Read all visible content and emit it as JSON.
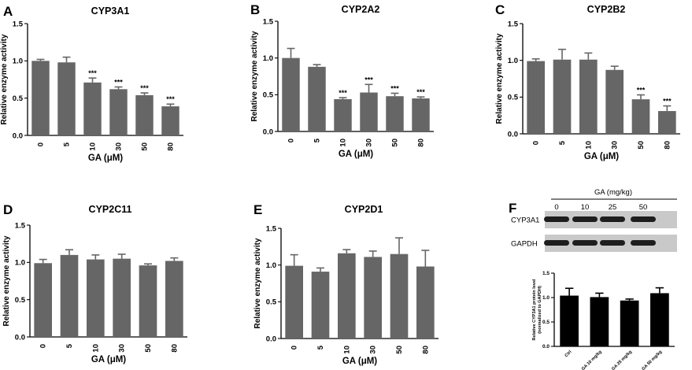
{
  "chart_data": [
    {
      "id": "A",
      "panel_label": "A",
      "type": "bar",
      "title": "CYP3A1",
      "categories": [
        "0",
        "5",
        "10",
        "30",
        "50",
        "80"
      ],
      "values": [
        1.0,
        0.98,
        0.71,
        0.62,
        0.54,
        0.39
      ],
      "errors": [
        0.02,
        0.07,
        0.06,
        0.03,
        0.03,
        0.03
      ],
      "significance": [
        "",
        "",
        "***",
        "***",
        "***",
        "***"
      ],
      "ylabel": "Relative enzyme activity",
      "xlabel": "GA (μM)",
      "ylim": [
        0,
        1.5
      ],
      "yticks": [
        "0.0",
        "0.5",
        "1.0",
        "1.5"
      ],
      "bar_color": "#666666"
    },
    {
      "id": "B",
      "panel_label": "B",
      "type": "bar",
      "title": "CYP2A2",
      "categories": [
        "0",
        "5",
        "10",
        "30",
        "50",
        "80"
      ],
      "values": [
        1.0,
        0.88,
        0.44,
        0.53,
        0.48,
        0.45
      ],
      "errors": [
        0.13,
        0.03,
        0.02,
        0.11,
        0.04,
        0.02
      ],
      "significance": [
        "",
        "",
        "***",
        "***",
        "***",
        "***"
      ],
      "ylabel": "Relative enzyme activity",
      "xlabel": "GA (μM)",
      "ylim": [
        0,
        1.5
      ],
      "yticks": [
        "0.0",
        "0.5",
        "1.0",
        "1.5"
      ],
      "bar_color": "#666666"
    },
    {
      "id": "C",
      "panel_label": "C",
      "type": "bar",
      "title": "CYP2B2",
      "categories": [
        "0",
        "5",
        "10",
        "30",
        "50",
        "80"
      ],
      "values": [
        0.99,
        1.01,
        1.01,
        0.87,
        0.47,
        0.31
      ],
      "errors": [
        0.03,
        0.14,
        0.09,
        0.05,
        0.06,
        0.07
      ],
      "significance": [
        "",
        "",
        "",
        "",
        "***",
        "***"
      ],
      "ylabel": "Relative enzyme activity",
      "xlabel": "GA (μM)",
      "ylim": [
        0,
        1.5
      ],
      "yticks": [
        "0.0",
        "0.5",
        "1.0",
        "1.5"
      ],
      "bar_color": "#666666"
    },
    {
      "id": "D",
      "panel_label": "D",
      "type": "bar",
      "title": "CYP2C11",
      "categories": [
        "0",
        "5",
        "10",
        "30",
        "50",
        "80"
      ],
      "values": [
        0.99,
        1.1,
        1.04,
        1.05,
        0.96,
        1.02
      ],
      "errors": [
        0.05,
        0.07,
        0.06,
        0.06,
        0.02,
        0.04
      ],
      "significance": [
        "",
        "",
        "",
        "",
        "",
        ""
      ],
      "ylabel": "Relative enzyme activity",
      "xlabel": "GA (μM)",
      "ylim": [
        0,
        1.5
      ],
      "yticks": [
        "0.0",
        "0.5",
        "1.0",
        "1.5"
      ],
      "bar_color": "#666666"
    },
    {
      "id": "E",
      "panel_label": "E",
      "type": "bar",
      "title": "CYP2D1",
      "categories": [
        "0",
        "5",
        "10",
        "30",
        "50",
        "80"
      ],
      "values": [
        0.99,
        0.91,
        1.16,
        1.11,
        1.15,
        0.98
      ],
      "errors": [
        0.15,
        0.05,
        0.05,
        0.08,
        0.22,
        0.22
      ],
      "significance": [
        "",
        "",
        "",
        "",
        "",
        ""
      ],
      "ylabel": "Relative enzyme activity",
      "xlabel": "GA (μM)",
      "ylim": [
        0,
        1.5
      ],
      "yticks": [
        "0.0",
        "0.5",
        "1.0",
        "1.5"
      ],
      "bar_color": "#666666"
    },
    {
      "id": "F",
      "panel_label": "F",
      "type": "bar",
      "title": "",
      "categories": [
        "Ctrl",
        "GA 10 mg/kg",
        "GA 25 mg/kg",
        "GA 50 mg/kg"
      ],
      "values": [
        1.04,
        1.01,
        0.94,
        1.09
      ],
      "errors": [
        0.15,
        0.08,
        0.03,
        0.11
      ],
      "ylabel": "Relative CYP3A1 protein level",
      "ylabel2": "(normalized to GAPDH)",
      "xlabel": "",
      "ylim": [
        0,
        1.5
      ],
      "yticks": [
        "0.0",
        "0.5",
        "1.0",
        "1.5"
      ],
      "bar_color": "#000000"
    }
  ],
  "western_blot": {
    "header": "GA (mg/kg)",
    "lanes": [
      "0",
      "10",
      "25",
      "50"
    ],
    "rows": [
      "CYP3A1",
      "GAPDH"
    ]
  }
}
